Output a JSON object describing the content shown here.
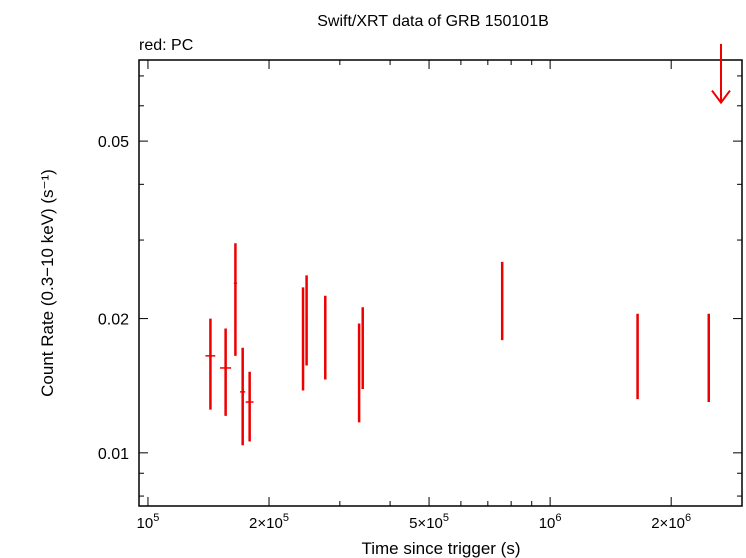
{
  "chart_data": {
    "type": "scatter",
    "title": "Swift/XRT data of GRB 150101B",
    "subtitle": "red: PC",
    "xlabel": "Time since trigger (s)",
    "ylabel": "Count Rate (0.3−10 keV) (s⁻¹)",
    "x_scale": "log",
    "y_scale": "log",
    "xlim": [
      95000,
      3000000
    ],
    "ylim": [
      0.0076,
      0.076
    ],
    "x_ticks": [
      {
        "value": 100000,
        "base": "10",
        "exp": "5"
      },
      {
        "value": 200000,
        "base": "2×10",
        "exp": "5"
      },
      {
        "value": 500000,
        "base": "5×10",
        "exp": "5"
      },
      {
        "value": 1000000,
        "base": "10",
        "exp": "6"
      },
      {
        "value": 2000000,
        "base": "2×10",
        "exp": "6"
      }
    ],
    "y_ticks": [
      {
        "value": 0.01,
        "label": "0.01"
      },
      {
        "value": 0.02,
        "label": "0.02"
      },
      {
        "value": 0.05,
        "label": "0.05"
      }
    ],
    "grid": false,
    "series_color": "#ee0000",
    "points": [
      {
        "x": 143000,
        "y": 0.0165,
        "xerr": [
          4000,
          4000
        ],
        "yerr": [
          0.0125,
          0.02
        ]
      },
      {
        "x": 156000,
        "y": 0.0155,
        "xerr": [
          5000,
          5000
        ],
        "yerr": [
          0.0121,
          0.019
        ]
      },
      {
        "x": 165000,
        "y": 0.024,
        "xerr": [
          1500,
          1500
        ],
        "yerr": [
          0.0165,
          0.0295
        ]
      },
      {
        "x": 172000,
        "y": 0.0137,
        "xerr": [
          2500,
          2500
        ],
        "yerr": [
          0.0104,
          0.0172
        ]
      },
      {
        "x": 179000,
        "y": 0.013,
        "xerr": [
          4000,
          4000
        ],
        "yerr": [
          0.0106,
          0.0152
        ]
      },
      {
        "x": 243000,
        "y": 0.0185,
        "xerr": [
          1500,
          1500
        ],
        "yerr": [
          0.0138,
          0.0235
        ]
      },
      {
        "x": 248000,
        "y": 0.02,
        "xerr": [
          1500,
          1500
        ],
        "yerr": [
          0.0157,
          0.025
        ]
      },
      {
        "x": 276000,
        "y": 0.0186,
        "xerr": [
          1500,
          1500
        ],
        "yerr": [
          0.0146,
          0.0225
        ]
      },
      {
        "x": 335000,
        "y": 0.0175,
        "xerr": [
          1500,
          1500
        ],
        "yerr": [
          0.0117,
          0.0195
        ]
      },
      {
        "x": 342000,
        "y": 0.0175,
        "xerr": [
          1500,
          1500
        ],
        "yerr": [
          0.0139,
          0.0212
        ]
      },
      {
        "x": 760000,
        "y": 0.0222,
        "xerr": [
          3000,
          3000
        ],
        "yerr": [
          0.0179,
          0.0268
        ]
      },
      {
        "x": 1650000,
        "y": 0.017,
        "xerr": [
          10000,
          10000
        ],
        "yerr": [
          0.0132,
          0.0205
        ]
      },
      {
        "x": 2480000,
        "y": 0.0167,
        "xerr": [
          10000,
          10000
        ],
        "yerr": [
          0.013,
          0.0205
        ]
      }
    ],
    "upper_limits": [
      {
        "x": 2660000,
        "y": 0.07,
        "y_tip": 0.061
      }
    ]
  }
}
